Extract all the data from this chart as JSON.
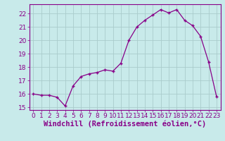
{
  "x": [
    0,
    1,
    2,
    3,
    4,
    5,
    6,
    7,
    8,
    9,
    10,
    11,
    12,
    13,
    14,
    15,
    16,
    17,
    18,
    19,
    20,
    21,
    22,
    23
  ],
  "y": [
    16.0,
    15.9,
    15.9,
    15.75,
    15.1,
    16.6,
    17.3,
    17.5,
    17.6,
    17.8,
    17.7,
    18.3,
    20.0,
    21.0,
    21.5,
    21.9,
    22.3,
    22.05,
    22.3,
    21.5,
    21.1,
    20.3,
    18.4,
    15.8
  ],
  "line_color": "#880088",
  "marker": "+",
  "bg_color": "#c8eaea",
  "grid_color": "#aacccc",
  "xlabel": "Windchill (Refroidissement éolien,°C)",
  "ylim": [
    14.8,
    22.7
  ],
  "xlim": [
    -0.5,
    23.5
  ],
  "yticks": [
    15,
    16,
    17,
    18,
    19,
    20,
    21,
    22
  ],
  "xticks": [
    0,
    1,
    2,
    3,
    4,
    5,
    6,
    7,
    8,
    9,
    10,
    11,
    12,
    13,
    14,
    15,
    16,
    17,
    18,
    19,
    20,
    21,
    22,
    23
  ],
  "xlabel_fontsize": 7.5,
  "tick_fontsize": 6.5,
  "label_color": "#880088",
  "spine_color": "#880088",
  "linewidth": 0.9,
  "markersize": 3.5,
  "markeredgewidth": 1.0
}
